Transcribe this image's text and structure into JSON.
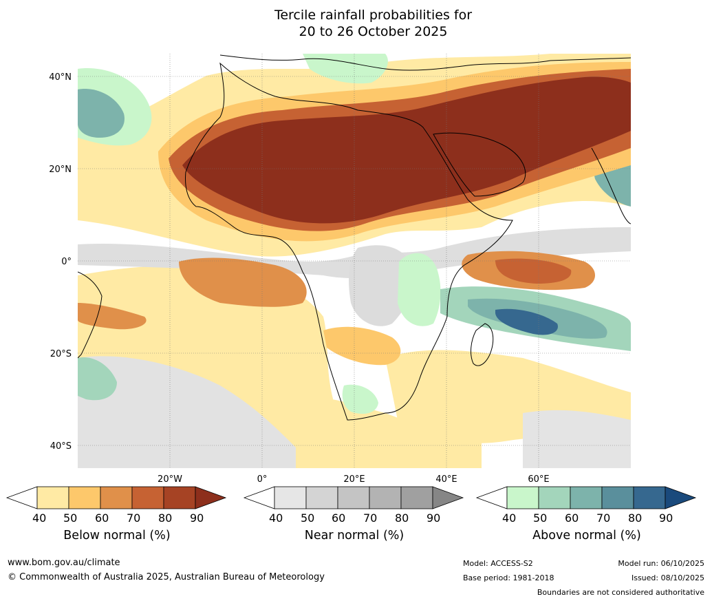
{
  "title": {
    "line1": "Tercile rainfall probabilities for",
    "line2": "20 to 26 October 2025"
  },
  "map": {
    "lat_labels": [
      "40°N",
      "20°N",
      "0°",
      "20°S",
      "40°S"
    ],
    "lon_labels": [
      "20°W",
      "0°",
      "20°E",
      "40°E",
      "60°E"
    ]
  },
  "colorbars": [
    {
      "name": "below",
      "title": "Below normal (%)",
      "ticks": [
        "40",
        "50",
        "60",
        "70",
        "80",
        "90"
      ],
      "colors": [
        "#ffffff",
        "#ffeaa4",
        "#fdc86b",
        "#e0904a",
        "#c66233",
        "#a64324",
        "#8d2f1c"
      ]
    },
    {
      "name": "near",
      "title": "Near normal (%)",
      "ticks": [
        "40",
        "50",
        "60",
        "70",
        "80",
        "90"
      ],
      "colors": [
        "#ffffff",
        "#e6e6e6",
        "#d4d4d4",
        "#c4c4c4",
        "#b3b3b3",
        "#a0a0a0",
        "#868686"
      ]
    },
    {
      "name": "above",
      "title": "Above normal (%)",
      "ticks": [
        "40",
        "50",
        "60",
        "70",
        "80",
        "90"
      ],
      "colors": [
        "#ffffff",
        "#c9f6cb",
        "#a3d5bb",
        "#7db3ab",
        "#5a8f9c",
        "#36688f",
        "#1a4a7c"
      ]
    }
  ],
  "footer": {
    "url": "www.bom.gov.au/climate",
    "copyright": "© Commonwealth of Australia 2025, Australian Bureau of Meteorology",
    "model": "Model: ACCESS-S2",
    "base_period": "Base period: 1981-2018",
    "model_run": "Model run: 06/10/2025",
    "issued": "Issued: 08/10/2025",
    "disclaimer": "Boundaries are not considered authoritative"
  },
  "colors": {
    "below_strong": "#8d2f1c",
    "below_mid": "#c66233",
    "below_light": "#fdc86b",
    "below_weak": "#ffeaa4",
    "near_light": "#e0e0e0",
    "above_light": "#c9f6cb",
    "above_mid": "#7db3ab",
    "above_strong": "#36688f"
  }
}
